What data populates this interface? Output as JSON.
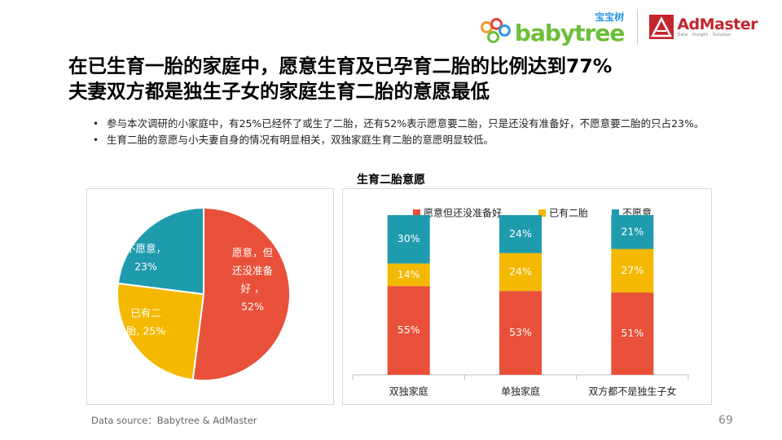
{
  "logos": {
    "babytree_word": "babytree",
    "babytree_cn": "宝宝树",
    "admaster_word": "AdMaster",
    "admaster_tagline": "Data · Insight · Solution"
  },
  "title": {
    "line1": "在已生育一胎的家庭中，愿意生育及已孕育二胎的比例达到77%",
    "line2": "夫妻双方都是独生子女的家庭生育二胎的意愿最低"
  },
  "bullets": [
    "参与本次调研的小家庭中，有25%已经怀了或生了二胎，还有52%表示愿意要二胎，只是还没有准备好，不愿意要二胎的只占23%。",
    "生育二胎的意愿与小夫妻自身的情况有明显相关，双独家庭生育二胎的意愿明显较低。"
  ],
  "chart_title": "生育二胎意愿",
  "colors": {
    "willing": "#e8503a",
    "have": "#f5b800",
    "unwilling": "#1f9bae"
  },
  "chart_data": [
    {
      "type": "pie",
      "slices": [
        {
          "label_lines": [
            "愿意，但",
            "还没准备",
            "好  ，"
          ],
          "value_label": "52%",
          "value": 52,
          "color": "#e8503a"
        },
        {
          "label_lines": [
            "已有二",
            "胎, 25%"
          ],
          "value_label": "",
          "value": 25,
          "color": "#f5b800"
        },
        {
          "label_lines": [
            "不愿意，"
          ],
          "value_label": "23%",
          "value": 23,
          "color": "#1f9bae"
        }
      ]
    },
    {
      "type": "bar",
      "stacked": true,
      "percent": true,
      "categories": [
        "双独家庭",
        "单独家庭",
        "双方都不是独生子女"
      ],
      "series": [
        {
          "name": "愿意但还没准备好",
          "values": [
            55,
            53,
            51
          ],
          "labels": [
            "55%",
            "53%",
            "51%"
          ],
          "color": "#e8503a"
        },
        {
          "name": "已有二胎",
          "values": [
            14,
            24,
            27
          ],
          "labels": [
            "14%",
            "24%",
            "27%"
          ],
          "color": "#f5b800"
        },
        {
          "name": "不愿意",
          "values": [
            30,
            24,
            21
          ],
          "labels": [
            "30%",
            "24%",
            "21%"
          ],
          "color": "#1f9bae"
        }
      ],
      "legend_position": "top"
    }
  ],
  "footer": {
    "source": "Data source：Babytree & AdMaster",
    "page": "69"
  }
}
